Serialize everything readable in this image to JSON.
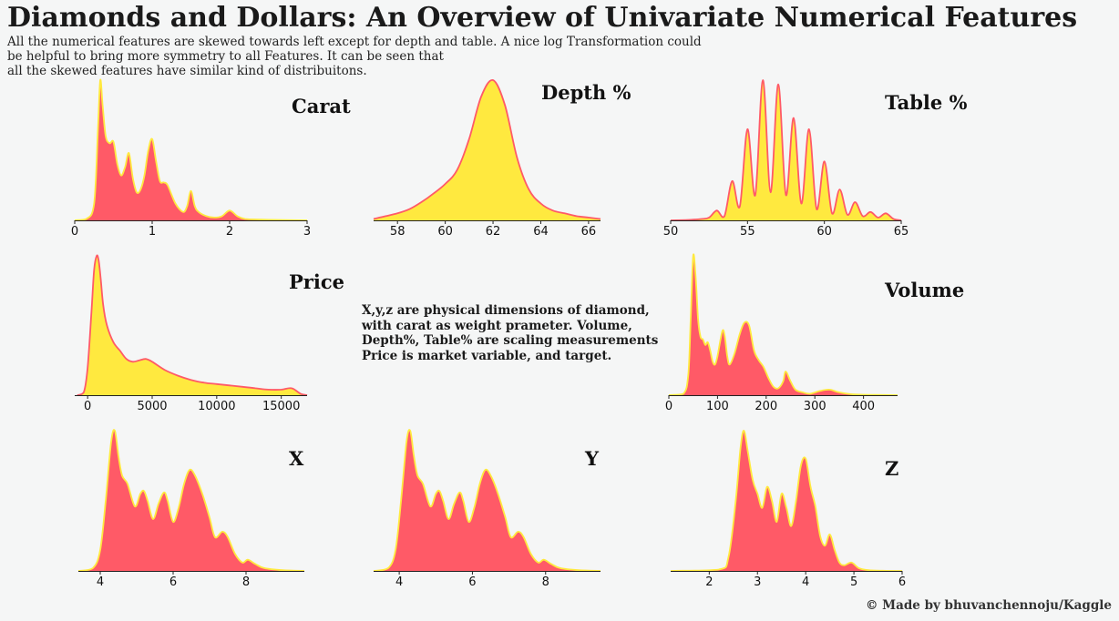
{
  "header": {
    "title": "Diamonds and Dollars: An Overview of Univariate Numerical Features",
    "subtitle": "All the numerical features are skewed towards left except for depth and table. A nice log Transformation could\n be helpful to bring more symmetry to all Features. It can be seen that\nall the skewed features have similar kind of distribuitons."
  },
  "note": "X,y,z are physical dimensions of diamond,\nwith carat as weight prameter. Volume,\nDepth%, Table% are scaling measurements\nPrice is market variable, and target.",
  "credit": "© Made by bhuvanchennoju/Kaggle",
  "colors": {
    "background": "#f5f6f6",
    "red": "#ff5a67",
    "yellow": "#ffe93f",
    "axis": "#222222"
  },
  "chart_data": [
    {
      "type": "area",
      "title": "Carat",
      "xlim": [
        0,
        3
      ],
      "xticks": [
        0,
        1,
        2,
        3
      ],
      "xticklabels": [
        "0",
        "1",
        "2",
        "3"
      ],
      "fill": "red",
      "line": "yellow",
      "x": [
        0.0,
        0.15,
        0.25,
        0.3,
        0.33,
        0.36,
        0.4,
        0.45,
        0.5,
        0.55,
        0.6,
        0.65,
        0.7,
        0.75,
        0.8,
        0.85,
        0.9,
        0.95,
        1.0,
        1.05,
        1.1,
        1.15,
        1.2,
        1.3,
        1.4,
        1.45,
        1.5,
        1.55,
        1.6,
        1.7,
        1.8,
        1.9,
        2.0,
        2.1,
        2.2,
        2.4,
        2.6,
        3.0
      ],
      "y": [
        0,
        0.01,
        0.12,
        0.65,
        1.0,
        0.82,
        0.6,
        0.55,
        0.56,
        0.4,
        0.32,
        0.38,
        0.48,
        0.3,
        0.2,
        0.22,
        0.32,
        0.5,
        0.58,
        0.42,
        0.28,
        0.27,
        0.25,
        0.12,
        0.06,
        0.1,
        0.21,
        0.1,
        0.06,
        0.03,
        0.02,
        0.03,
        0.07,
        0.03,
        0.01,
        0.006,
        0.003,
        0
      ]
    },
    {
      "type": "area",
      "title": "Depth %",
      "xlim": [
        57,
        66.5
      ],
      "xticks": [
        58,
        60,
        62,
        64,
        66
      ],
      "xticklabels": [
        "58",
        "60",
        "62",
        "64",
        "66"
      ],
      "fill": "yellow",
      "line": "red",
      "x": [
        57.0,
        57.5,
        58,
        58.5,
        59,
        59.5,
        60,
        60.5,
        61,
        61.5,
        62,
        62.5,
        63,
        63.5,
        64,
        64.5,
        65,
        65.5,
        66,
        66.5
      ],
      "y": [
        0.01,
        0.03,
        0.05,
        0.08,
        0.13,
        0.19,
        0.26,
        0.36,
        0.58,
        0.88,
        1.0,
        0.82,
        0.45,
        0.22,
        0.12,
        0.07,
        0.05,
        0.03,
        0.02,
        0.01
      ]
    },
    {
      "type": "area",
      "title": "Table %",
      "xlim": [
        50,
        65
      ],
      "xticks": [
        50,
        55,
        60,
        65
      ],
      "xticklabels": [
        "50",
        "55",
        "60",
        "65"
      ],
      "fill": "yellow",
      "line": "red",
      "x": [
        50,
        51,
        52,
        52.5,
        53,
        53.5,
        54,
        54.5,
        55,
        55.5,
        56,
        56.5,
        57,
        57.5,
        58,
        58.5,
        59,
        59.5,
        60,
        60.5,
        61,
        61.5,
        62,
        62.5,
        63,
        63.5,
        64,
        64.5,
        65
      ],
      "y": [
        0,
        0.002,
        0.01,
        0.02,
        0.07,
        0.03,
        0.28,
        0.1,
        0.65,
        0.18,
        1.0,
        0.2,
        0.97,
        0.18,
        0.73,
        0.12,
        0.65,
        0.08,
        0.42,
        0.05,
        0.22,
        0.04,
        0.13,
        0.03,
        0.06,
        0.02,
        0.05,
        0.01,
        0
      ]
    },
    {
      "type": "area",
      "title": "Price",
      "xlim": [
        -1000,
        17000
      ],
      "xticks": [
        0,
        5000,
        10000,
        15000
      ],
      "xticklabels": [
        "0",
        "5000",
        "10000",
        "15000"
      ],
      "fill": "yellow",
      "line": "red",
      "x": [
        -800,
        -300,
        0,
        300,
        500,
        700,
        850,
        1000,
        1200,
        1500,
        2000,
        2500,
        3000,
        3500,
        4000,
        4500,
        5000,
        6000,
        7000,
        8000,
        9000,
        10000,
        11000,
        12000,
        13000,
        14000,
        15000,
        15800,
        16500,
        17000
      ],
      "y": [
        0,
        0.02,
        0.2,
        0.6,
        0.9,
        1.0,
        0.97,
        0.85,
        0.65,
        0.5,
        0.38,
        0.32,
        0.26,
        0.24,
        0.25,
        0.26,
        0.24,
        0.18,
        0.14,
        0.11,
        0.09,
        0.08,
        0.07,
        0.06,
        0.05,
        0.04,
        0.04,
        0.05,
        0.01,
        0
      ]
    },
    {
      "type": "area",
      "title": "Volume",
      "xlim": [
        0,
        470
      ],
      "xticks": [
        0,
        100,
        200,
        300,
        400
      ],
      "xticklabels": [
        "0",
        "100",
        "200",
        "300",
        "400"
      ],
      "fill": "red",
      "line": "yellow",
      "x": [
        0,
        30,
        40,
        45,
        50,
        55,
        60,
        65,
        70,
        75,
        80,
        85,
        90,
        95,
        100,
        110,
        115,
        120,
        125,
        135,
        145,
        155,
        165,
        175,
        185,
        195,
        205,
        215,
        225,
        235,
        240,
        250,
        260,
        275,
        290,
        310,
        330,
        350,
        380,
        420,
        470
      ],
      "y": [
        0,
        0.01,
        0.15,
        0.55,
        1.0,
        0.85,
        0.55,
        0.42,
        0.4,
        0.36,
        0.38,
        0.32,
        0.24,
        0.22,
        0.28,
        0.46,
        0.42,
        0.28,
        0.22,
        0.3,
        0.43,
        0.52,
        0.5,
        0.32,
        0.25,
        0.2,
        0.12,
        0.06,
        0.05,
        0.1,
        0.17,
        0.1,
        0.04,
        0.02,
        0.01,
        0.03,
        0.04,
        0.02,
        0.005,
        0.002,
        0
      ]
    },
    {
      "type": "area",
      "title": "X",
      "xlim": [
        3.4,
        9.6
      ],
      "xticks": [
        4,
        6,
        8
      ],
      "xticklabels": [
        "4",
        "6",
        "8"
      ],
      "fill": "red",
      "line": "yellow",
      "x": [
        3.4,
        3.8,
        4.0,
        4.15,
        4.3,
        4.4,
        4.5,
        4.6,
        4.75,
        4.95,
        5.1,
        5.2,
        5.3,
        5.45,
        5.6,
        5.75,
        5.85,
        6.0,
        6.15,
        6.3,
        6.45,
        6.6,
        6.8,
        7.0,
        7.15,
        7.35,
        7.5,
        7.7,
        7.9,
        8.05,
        8.25,
        8.5,
        9.0,
        9.6
      ],
      "y": [
        0,
        0.02,
        0.15,
        0.5,
        0.92,
        1.0,
        0.82,
        0.68,
        0.62,
        0.46,
        0.55,
        0.57,
        0.5,
        0.37,
        0.48,
        0.56,
        0.5,
        0.35,
        0.45,
        0.62,
        0.72,
        0.68,
        0.55,
        0.38,
        0.24,
        0.28,
        0.24,
        0.12,
        0.06,
        0.08,
        0.05,
        0.02,
        0.005,
        0
      ]
    },
    {
      "type": "area",
      "title": "Y",
      "xlim": [
        3.3,
        9.5
      ],
      "xticks": [
        4,
        6,
        8
      ],
      "xticklabels": [
        "4",
        "6",
        "8"
      ],
      "fill": "red",
      "line": "yellow",
      "x": [
        3.3,
        3.7,
        3.9,
        4.05,
        4.2,
        4.3,
        4.4,
        4.5,
        4.65,
        4.85,
        5.0,
        5.1,
        5.2,
        5.35,
        5.5,
        5.65,
        5.75,
        5.9,
        6.05,
        6.2,
        6.35,
        6.5,
        6.7,
        6.9,
        7.05,
        7.25,
        7.4,
        7.6,
        7.8,
        7.95,
        8.15,
        8.4,
        8.9,
        9.5
      ],
      "y": [
        0,
        0.02,
        0.15,
        0.5,
        0.92,
        1.0,
        0.82,
        0.68,
        0.62,
        0.46,
        0.55,
        0.57,
        0.5,
        0.37,
        0.48,
        0.56,
        0.5,
        0.35,
        0.45,
        0.62,
        0.72,
        0.68,
        0.55,
        0.38,
        0.24,
        0.28,
        0.24,
        0.12,
        0.06,
        0.08,
        0.05,
        0.02,
        0.005,
        0
      ]
    },
    {
      "type": "area",
      "title": "Z",
      "xlim": [
        1.2,
        6.0
      ],
      "xticks": [
        2,
        3,
        4,
        5,
        6
      ],
      "xticklabels": [
        "2",
        "3",
        "4",
        "5",
        "6"
      ],
      "fill": "red",
      "line": "yellow",
      "x": [
        1.2,
        2.2,
        2.4,
        2.55,
        2.65,
        2.72,
        2.8,
        2.9,
        3.0,
        3.1,
        3.2,
        3.3,
        3.4,
        3.5,
        3.6,
        3.7,
        3.8,
        3.9,
        4.0,
        4.1,
        4.2,
        4.3,
        4.4,
        4.5,
        4.6,
        4.7,
        4.8,
        4.95,
        5.1,
        5.3,
        5.6,
        6.0
      ],
      "y": [
        0,
        0.01,
        0.1,
        0.5,
        0.88,
        1.0,
        0.85,
        0.65,
        0.55,
        0.45,
        0.6,
        0.5,
        0.35,
        0.55,
        0.45,
        0.32,
        0.5,
        0.75,
        0.8,
        0.6,
        0.46,
        0.25,
        0.18,
        0.26,
        0.15,
        0.06,
        0.04,
        0.06,
        0.02,
        0.005,
        0.001,
        0
      ]
    }
  ]
}
